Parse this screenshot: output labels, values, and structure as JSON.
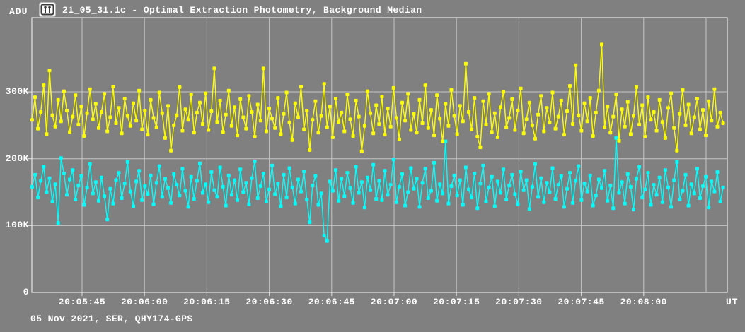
{
  "window": {
    "icon": "lightcurve-icon"
  },
  "colors": {
    "background": "#808080",
    "grid": "#c6c6c6",
    "axis_border": "#e6e6e6",
    "text": "#ffffff",
    "icon_glyph": "#3a3a3a"
  },
  "chart_data": {
    "type": "line",
    "title": "21_05_31.1c - Optimal Extraction Photometry, Background Median",
    "ylabel": "ADU",
    "xlabel": "UT",
    "footer": "05 Nov 2021, SER, QHY174-GPS",
    "grid": true,
    "legend_position": "none",
    "marker": "square",
    "value_unit": "kADU",
    "ylim_adu": [
      0,
      411000
    ],
    "y_ticks": [
      {
        "value_adu": 300000,
        "label": "300K"
      },
      {
        "value_adu": 200000,
        "label": "200K"
      },
      {
        "value_adu": 100000,
        "label": "100K"
      },
      {
        "value_adu": 0,
        "label": "0"
      }
    ],
    "x_ticks": [
      {
        "s": 0,
        "label": "20:05:45"
      },
      {
        "s": 15,
        "label": "20:06:00"
      },
      {
        "s": 30,
        "label": "20:06:15"
      },
      {
        "s": 45,
        "label": "20:06:30"
      },
      {
        "s": 60,
        "label": "20:06:45"
      },
      {
        "s": 75,
        "label": "20:07:00"
      },
      {
        "s": 90,
        "label": "20:07:15"
      },
      {
        "s": 105,
        "label": "20:07:30"
      },
      {
        "s": 120,
        "label": "20:07:45"
      },
      {
        "s": 135,
        "label": "20:08:00"
      },
      {
        "s": 150,
        "label": ""
      }
    ],
    "x_axis_first_tick": "20:05:45",
    "t0_s": -12,
    "dt_s": 0.695,
    "series": [
      {
        "name": "yellow",
        "color": "#ffff00",
        "values_kadu": [
          258,
          292,
          245,
          270,
          310,
          237,
          332,
          265,
          248,
          288,
          256,
          301,
          272,
          240,
          263,
          295,
          251,
          278,
          234,
          268,
          304,
          259,
          282,
          246,
          270,
          297,
          241,
          262,
          308,
          253,
          276,
          238,
          290,
          264,
          249,
          283,
          257,
          302,
          244,
          272,
          236,
          288,
          261,
          247,
          299,
          268,
          231,
          279,
          212,
          250,
          265,
          307,
          242,
          274,
          258,
          296,
          239,
          269,
          284,
          252,
          298,
          243,
          271,
          335,
          255,
          287,
          240,
          266,
          302,
          249,
          277,
          235,
          289,
          262,
          245,
          294,
          270,
          233,
          281,
          257,
          335,
          241,
          275,
          260,
          246,
          291,
          237,
          267,
          299,
          254,
          228,
          283,
          262,
          308,
          244,
          272,
          213,
          258,
          286,
          239,
          264,
          312,
          247,
          278,
          232,
          290,
          255,
          269,
          241,
          296,
          259,
          234,
          287,
          263,
          211,
          249,
          301,
          268,
          238,
          280,
          252,
          293,
          236,
          275,
          248,
          306,
          261,
          229,
          284,
          257,
          297,
          243,
          267,
          239,
          288,
          253,
          310,
          246,
          273,
          235,
          295,
          260,
          226,
          282,
          249,
          303,
          264,
          237,
          279,
          256,
          342,
          270,
          244,
          291,
          233,
          217,
          286,
          251,
          297,
          240,
          268,
          232,
          277,
          300,
          247,
          261,
          289,
          243,
          272,
          305,
          238,
          259,
          284,
          250,
          230,
          266,
          294,
          241,
          276,
          254,
          299,
          245,
          263,
          287,
          236,
          271,
          309,
          252,
          340,
          265,
          242,
          283,
          256,
          291,
          234,
          269,
          302,
          371,
          247,
          278,
          239,
          263,
          296,
          227,
          274,
          248,
          285,
          237,
          264,
          307,
          251,
          280,
          233,
          292,
          258,
          270,
          242,
          288,
          255,
          231,
          276,
          298,
          246,
          212,
          267,
          303,
          250,
          281,
          238,
          262,
          290,
          244,
          273,
          235,
          286,
          257,
          304,
          248,
          269,
          253
        ]
      },
      {
        "name": "cyan",
        "color": "#00ffff",
        "values_kadu": [
          158,
          176,
          142,
          167,
          188,
          150,
          171,
          136,
          162,
          104,
          201,
          178,
          146,
          169,
          183,
          139,
          160,
          174,
          131,
          157,
          192,
          148,
          165,
          137,
          172,
          144,
          109,
          155,
          133,
          168,
          179,
          141,
          163,
          195,
          151,
          129,
          166,
          182,
          138,
          159,
          147,
          175,
          132,
          164,
          189,
          143,
          170,
          156,
          134,
          177,
          161,
          145,
          185,
          152,
          128,
          173,
          140,
          167,
          193,
          149,
          162,
          135,
          180,
          153,
          143,
          187,
          158,
          130,
          175,
          146,
          168,
          138,
          184,
          150,
          164,
          132,
          171,
          196,
          141,
          159,
          178,
          136,
          154,
          190,
          147,
          163,
          129,
          176,
          142,
          186,
          157,
          133,
          169,
          151,
          181,
          139,
          105,
          160,
          174,
          131,
          148,
          85,
          77,
          166,
          152,
          183,
          137,
          170,
          144,
          179,
          156,
          134,
          188,
          149,
          165,
          127,
          172,
          153,
          191,
          140,
          167,
          138,
          182,
          146,
          161,
          199,
          135,
          158,
          177,
          130,
          150,
          186,
          155,
          170,
          128,
          164,
          185,
          141,
          152,
          194,
          137,
          162,
          148,
          226,
          133,
          159,
          175,
          145,
          168,
          131,
          187,
          154,
          142,
          178,
          126,
          163,
          190,
          136,
          157,
          173,
          129,
          166,
          149,
          184,
          139,
          160,
          176,
          147,
          132,
          181,
          153,
          168,
          125,
          158,
          192,
          143,
          171,
          135,
          164,
          150,
          186,
          140,
          161,
          174,
          128,
          155,
          179,
          134,
          167,
          189,
          138,
          163,
          151,
          175,
          130,
          145,
          169,
          156,
          182,
          137,
          160,
          126,
          231,
          149,
          165,
          133,
          177,
          158,
          124,
          170,
          188,
          142,
          154,
          179,
          131,
          161,
          146,
          172,
          135,
          183,
          157,
          128,
          168,
          195,
          139,
          152,
          176,
          130,
          162,
          148,
          185,
          141,
          159,
          173,
          127,
          166,
          151,
          180,
          136,
          157
        ]
      }
    ]
  }
}
